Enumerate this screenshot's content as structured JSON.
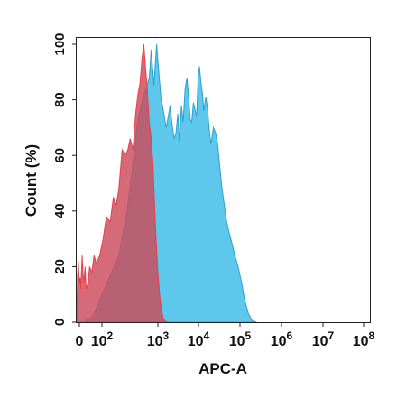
{
  "chart_data": {
    "type": "area",
    "title": "",
    "xlabel": "APC-A",
    "ylabel": "Count (%)",
    "x_scale": "biexponential",
    "xlim": [
      -10,
      100000000
    ],
    "ylim": [
      0,
      100
    ],
    "x_ticks": [
      {
        "value": 0,
        "base": "0",
        "exp": ""
      },
      {
        "value": 100,
        "base": "10",
        "exp": "2"
      },
      {
        "value": 1000,
        "base": "10",
        "exp": "3"
      },
      {
        "value": 10000,
        "base": "10",
        "exp": "4"
      },
      {
        "value": 100000,
        "base": "10",
        "exp": "5"
      },
      {
        "value": 1000000,
        "base": "10",
        "exp": "6"
      },
      {
        "value": 10000000,
        "base": "10",
        "exp": "7"
      },
      {
        "value": 100000000,
        "base": "10",
        "exp": "8"
      }
    ],
    "y_ticks": [
      "0",
      "20",
      "40",
      "60",
      "80",
      "100"
    ],
    "y_tick_values": [
      0,
      20,
      40,
      60,
      80,
      100
    ],
    "grid": false,
    "legend": "none",
    "series": [
      {
        "color": "#5ec8ec",
        "stroke": "#2aa0d4",
        "points": [
          [
            20,
            0
          ],
          [
            60,
            2
          ],
          [
            100,
            10
          ],
          [
            150,
            18
          ],
          [
            200,
            24
          ],
          [
            280,
            40
          ],
          [
            350,
            55
          ],
          [
            420,
            70
          ],
          [
            500,
            78
          ],
          [
            560,
            82
          ],
          [
            620,
            84
          ],
          [
            700,
            88
          ],
          [
            760,
            98
          ],
          [
            850,
            85
          ],
          [
            950,
            100
          ],
          [
            1050,
            90
          ],
          [
            1200,
            80
          ],
          [
            1300,
            78
          ],
          [
            1400,
            75
          ],
          [
            1600,
            70
          ],
          [
            1800,
            74
          ],
          [
            2000,
            78
          ],
          [
            2200,
            72
          ],
          [
            2500,
            66
          ],
          [
            2800,
            68
          ],
          [
            3100,
            75
          ],
          [
            3400,
            65
          ],
          [
            3800,
            78
          ],
          [
            4200,
            72
          ],
          [
            4700,
            84
          ],
          [
            5200,
            88
          ],
          [
            5800,
            80
          ],
          [
            6200,
            73
          ],
          [
            6800,
            72
          ],
          [
            7500,
            79
          ],
          [
            8300,
            76
          ],
          [
            9000,
            74
          ],
          [
            9800,
            88
          ],
          [
            10500,
            92
          ],
          [
            11500,
            86
          ],
          [
            12500,
            82
          ],
          [
            13500,
            76
          ],
          [
            15000,
            81
          ],
          [
            16500,
            77
          ],
          [
            18000,
            70
          ],
          [
            20000,
            64
          ],
          [
            23000,
            70
          ],
          [
            26000,
            68
          ],
          [
            29000,
            64
          ],
          [
            33000,
            55
          ],
          [
            37000,
            48
          ],
          [
            42000,
            42
          ],
          [
            48000,
            36
          ],
          [
            55000,
            32
          ],
          [
            65000,
            28
          ],
          [
            75000,
            24
          ],
          [
            90000,
            20
          ],
          [
            110000,
            14
          ],
          [
            130000,
            8
          ],
          [
            160000,
            3
          ],
          [
            200000,
            0.5
          ],
          [
            250000,
            0
          ]
        ]
      },
      {
        "color": "#cc4a5a",
        "stroke": "#e8404a",
        "points": [
          [
            -10,
            0
          ],
          [
            -7,
            16
          ],
          [
            -4,
            22
          ],
          [
            -2,
            18
          ],
          [
            0,
            14
          ],
          [
            3,
            16
          ],
          [
            6,
            12
          ],
          [
            9,
            18
          ],
          [
            12,
            24
          ],
          [
            16,
            18
          ],
          [
            20,
            14
          ],
          [
            25,
            20
          ],
          [
            30,
            12
          ],
          [
            38,
            14
          ],
          [
            45,
            20
          ],
          [
            55,
            18
          ],
          [
            65,
            24
          ],
          [
            75,
            21
          ],
          [
            90,
            24
          ],
          [
            105,
            30
          ],
          [
            120,
            38
          ],
          [
            140,
            36
          ],
          [
            160,
            45
          ],
          [
            180,
            42
          ],
          [
            200,
            48
          ],
          [
            230,
            62
          ],
          [
            260,
            60
          ],
          [
            290,
            62
          ],
          [
            320,
            66
          ],
          [
            360,
            62
          ],
          [
            400,
            75
          ],
          [
            440,
            82
          ],
          [
            480,
            86
          ],
          [
            520,
            95
          ],
          [
            560,
            100
          ],
          [
            600,
            92
          ],
          [
            640,
            85
          ],
          [
            700,
            72
          ],
          [
            760,
            66
          ],
          [
            820,
            56
          ],
          [
            880,
            40
          ],
          [
            940,
            28
          ],
          [
            1000,
            18
          ],
          [
            1100,
            10
          ],
          [
            1200,
            5
          ],
          [
            1350,
            1.5
          ],
          [
            1500,
            0.5
          ],
          [
            1700,
            0
          ]
        ]
      }
    ]
  }
}
